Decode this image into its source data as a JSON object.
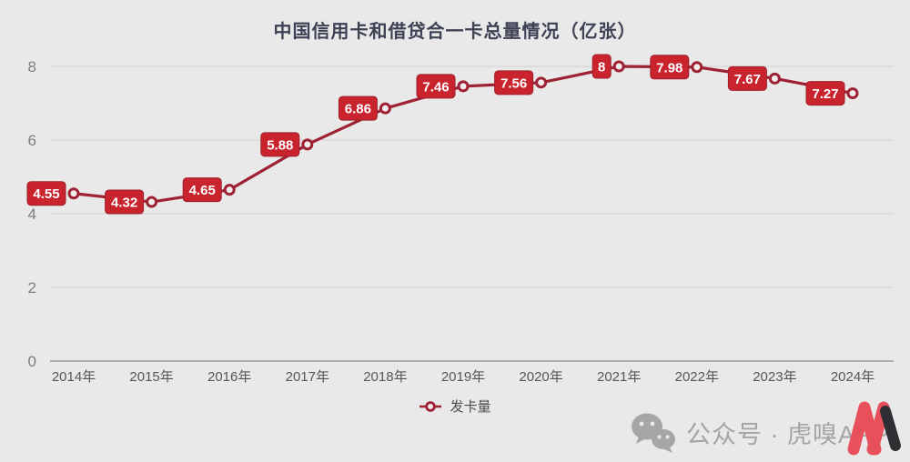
{
  "title": "中国信用卡和借贷合一卡总量情况（亿张）",
  "chart_data": {
    "type": "line",
    "title": "中国信用卡和借贷合一卡总量情况（亿张）",
    "series_name": "发卡量",
    "categories": [
      "2014年",
      "2015年",
      "2016年",
      "2017年",
      "2018年",
      "2019年",
      "2020年",
      "2021年",
      "2022年",
      "2023年",
      "2024年"
    ],
    "values": [
      4.55,
      4.32,
      4.65,
      5.88,
      6.86,
      7.46,
      7.56,
      8,
      7.98,
      7.67,
      7.27
    ],
    "data_labels": [
      "4.55",
      "4.32",
      "4.65",
      "5.88",
      "6.86",
      "7.46",
      "7.56",
      "8",
      "7.98",
      "7.67",
      "7.27"
    ],
    "ylim": [
      0,
      8
    ],
    "yticks": [
      0,
      2,
      4,
      6,
      8
    ],
    "grid": true,
    "legend_position": "bottom",
    "marker": "hollow-circle"
  },
  "legend": {
    "label": "发卡量"
  },
  "watermark": {
    "text": "公众号 · 虎嗅APP"
  },
  "colors": {
    "background": "#e9e9e9",
    "line": "#9e2134",
    "badge_fill": "#c9232e",
    "badge_border": "#9e1f2b",
    "badge_text": "#ffffff",
    "marker_fill": "#f2eded",
    "gridline": "#d2d1d1",
    "axis_line": "#9c9c9c",
    "y_tick_text": "#7d7d7d",
    "x_tick_text": "#565656",
    "title_text": "#3d4154",
    "legend_text": "#4b4b4b",
    "watermark_gray": "#a4a4a4",
    "logo_red": "#e8505b",
    "logo_black": "#2f2f33"
  }
}
